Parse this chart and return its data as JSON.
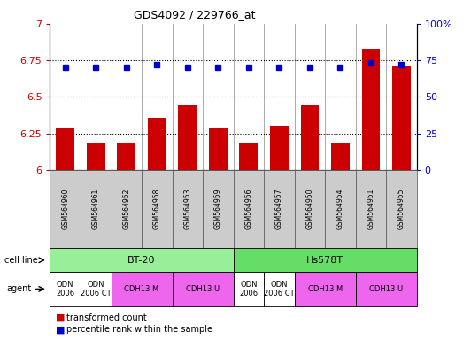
{
  "title": "GDS4092 / 229766_at",
  "samples": [
    "GSM564960",
    "GSM564961",
    "GSM564952",
    "GSM564958",
    "GSM564953",
    "GSM564959",
    "GSM564956",
    "GSM564957",
    "GSM564950",
    "GSM564954",
    "GSM564951",
    "GSM564955"
  ],
  "bar_values": [
    6.29,
    6.19,
    6.18,
    6.36,
    6.44,
    6.29,
    6.18,
    6.3,
    6.44,
    6.19,
    6.83,
    6.71
  ],
  "dot_values": [
    70,
    70,
    70,
    72,
    70,
    70,
    70,
    70,
    70,
    70,
    73,
    72
  ],
  "ylim_left": [
    6.0,
    7.0
  ],
  "ylim_right": [
    0,
    100
  ],
  "yticks_left": [
    6.0,
    6.25,
    6.5,
    6.75,
    7.0
  ],
  "yticks_right": [
    0,
    25,
    50,
    75,
    100
  ],
  "ytick_labels_left": [
    "6",
    "6.25",
    "6.5",
    "6.75",
    "7"
  ],
  "ytick_labels_right": [
    "0",
    "25",
    "50",
    "75",
    "100%"
  ],
  "hlines": [
    6.25,
    6.5,
    6.75
  ],
  "bar_color": "#cc0000",
  "dot_color": "#0000cc",
  "bar_bottom": 6.0,
  "cell_line_row": [
    {
      "label": "BT-20",
      "start": 0,
      "end": 6,
      "color": "#99ee99"
    },
    {
      "label": "Hs578T",
      "start": 6,
      "end": 12,
      "color": "#66dd66"
    }
  ],
  "agent_row": [
    {
      "label": "ODN\n2006",
      "start": 0,
      "end": 1,
      "color": "#ffffff"
    },
    {
      "label": "ODN\n2006 CT",
      "start": 1,
      "end": 2,
      "color": "#ffffff"
    },
    {
      "label": "CDH13 M",
      "start": 2,
      "end": 4,
      "color": "#ee66ee"
    },
    {
      "label": "CDH13 U",
      "start": 4,
      "end": 6,
      "color": "#ee66ee"
    },
    {
      "label": "ODN\n2006",
      "start": 6,
      "end": 7,
      "color": "#ffffff"
    },
    {
      "label": "ODN\n2006 CT",
      "start": 7,
      "end": 8,
      "color": "#ffffff"
    },
    {
      "label": "CDH13 M",
      "start": 8,
      "end": 10,
      "color": "#ee66ee"
    },
    {
      "label": "CDH13 U",
      "start": 10,
      "end": 12,
      "color": "#ee66ee"
    }
  ],
  "legend_items": [
    {
      "label": "transformed count",
      "color": "#cc0000"
    },
    {
      "label": "percentile rank within the sample",
      "color": "#0000cc"
    }
  ],
  "tick_label_color_left": "#cc0000",
  "tick_label_color_right": "#0000cc",
  "background_color": "#ffffff",
  "n_samples": 12,
  "sample_bg_color": "#cccccc"
}
